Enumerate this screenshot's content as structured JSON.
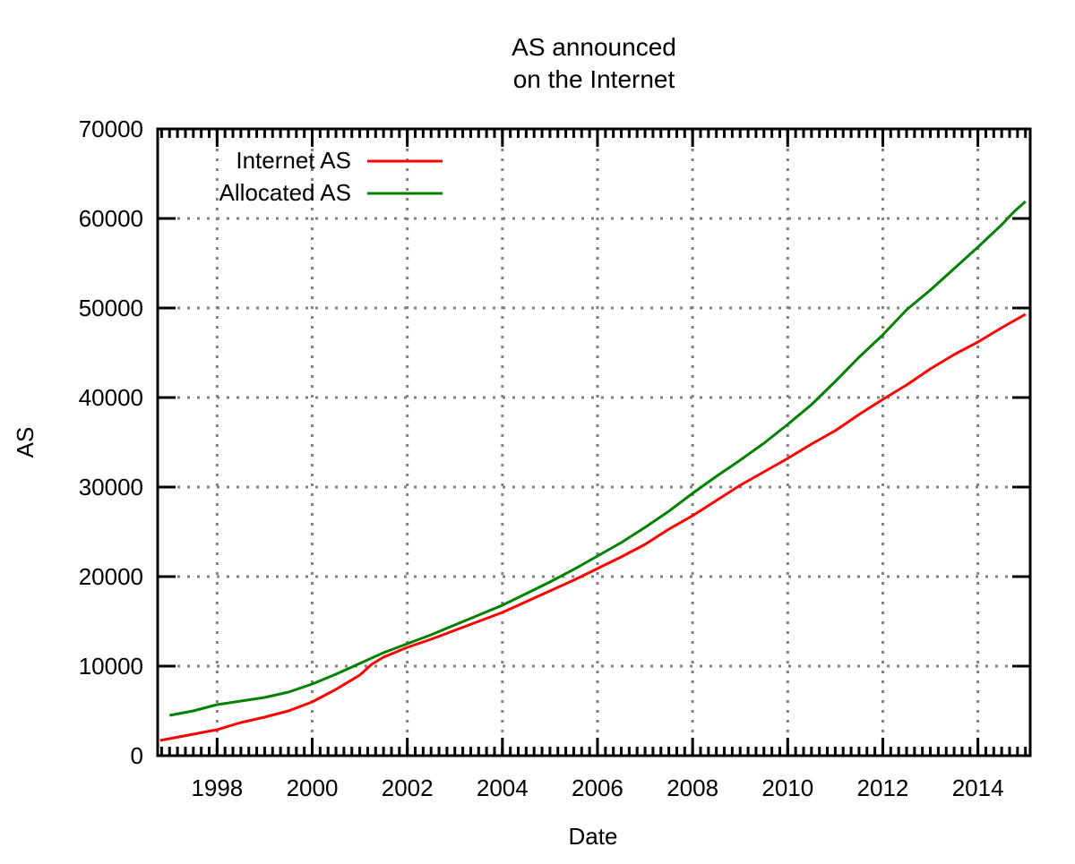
{
  "chart_data": {
    "type": "line",
    "title_lines": [
      "AS announced",
      "on the Internet"
    ],
    "xlabel": "Date",
    "ylabel": "AS",
    "xlim": [
      1996.75,
      2015.1
    ],
    "ylim": [
      0,
      70000
    ],
    "x_ticks": [
      1998,
      2000,
      2002,
      2004,
      2006,
      2008,
      2010,
      2012,
      2014
    ],
    "x_tick_labels": [
      "1998",
      "2000",
      "2002",
      "2004",
      "2006",
      "2008",
      "2010",
      "2012",
      "2014"
    ],
    "y_ticks": [
      0,
      10000,
      20000,
      30000,
      40000,
      50000,
      60000,
      70000
    ],
    "y_tick_labels": [
      "0",
      "10000",
      "20000",
      "30000",
      "40000",
      "50000",
      "60000",
      "70000"
    ],
    "grid": true,
    "legend": {
      "placement": "top-left",
      "entries": [
        "Internet AS",
        "Allocated AS"
      ]
    },
    "series": [
      {
        "name": "Internet AS",
        "color": "#ff0000",
        "points": [
          [
            1996.8,
            1700
          ],
          [
            1997.0,
            1900
          ],
          [
            1997.5,
            2400
          ],
          [
            1998.0,
            2900
          ],
          [
            1998.5,
            3700
          ],
          [
            1999.0,
            4300
          ],
          [
            1999.5,
            5000
          ],
          [
            2000.0,
            6000
          ],
          [
            2000.5,
            7400
          ],
          [
            2001.0,
            9000
          ],
          [
            2001.25,
            10200
          ],
          [
            2001.5,
            11000
          ],
          [
            2002.0,
            12100
          ],
          [
            2002.5,
            13000
          ],
          [
            2003.0,
            14000
          ],
          [
            2003.5,
            15000
          ],
          [
            2004.0,
            16000
          ],
          [
            2004.5,
            17200
          ],
          [
            2005.0,
            18400
          ],
          [
            2005.5,
            19600
          ],
          [
            2006.0,
            20900
          ],
          [
            2006.5,
            22200
          ],
          [
            2007.0,
            23600
          ],
          [
            2007.5,
            25300
          ],
          [
            2008.0,
            26800
          ],
          [
            2008.5,
            28500
          ],
          [
            2009.0,
            30200
          ],
          [
            2009.5,
            31700
          ],
          [
            2010.0,
            33200
          ],
          [
            2010.5,
            34800
          ],
          [
            2011.0,
            36300
          ],
          [
            2011.5,
            38100
          ],
          [
            2012.0,
            39800
          ],
          [
            2012.5,
            41400
          ],
          [
            2013.0,
            43200
          ],
          [
            2013.5,
            44800
          ],
          [
            2014.0,
            46200
          ],
          [
            2014.5,
            47800
          ],
          [
            2015.0,
            49300
          ]
        ]
      },
      {
        "name": "Allocated AS",
        "color": "#008000",
        "points": [
          [
            1997.0,
            4500
          ],
          [
            1997.5,
            5000
          ],
          [
            1998.0,
            5700
          ],
          [
            1998.5,
            6100
          ],
          [
            1999.0,
            6500
          ],
          [
            1999.5,
            7100
          ],
          [
            2000.0,
            8000
          ],
          [
            2000.5,
            9100
          ],
          [
            2001.0,
            10300
          ],
          [
            2001.5,
            11500
          ],
          [
            2002.0,
            12500
          ],
          [
            2002.5,
            13500
          ],
          [
            2003.0,
            14600
          ],
          [
            2003.5,
            15700
          ],
          [
            2004.0,
            16800
          ],
          [
            2004.5,
            18100
          ],
          [
            2005.0,
            19400
          ],
          [
            2005.5,
            20800
          ],
          [
            2006.0,
            22300
          ],
          [
            2006.5,
            23800
          ],
          [
            2007.0,
            25500
          ],
          [
            2007.5,
            27300
          ],
          [
            2008.0,
            29300
          ],
          [
            2008.5,
            31200
          ],
          [
            2009.0,
            33000
          ],
          [
            2009.5,
            34900
          ],
          [
            2010.0,
            37000
          ],
          [
            2010.5,
            39200
          ],
          [
            2011.0,
            41800
          ],
          [
            2011.5,
            44500
          ],
          [
            2012.0,
            47000
          ],
          [
            2012.5,
            49800
          ],
          [
            2013.0,
            52000
          ],
          [
            2013.5,
            54400
          ],
          [
            2014.0,
            56800
          ],
          [
            2014.5,
            59300
          ],
          [
            2014.75,
            60700
          ],
          [
            2015.0,
            61900
          ]
        ]
      }
    ]
  }
}
